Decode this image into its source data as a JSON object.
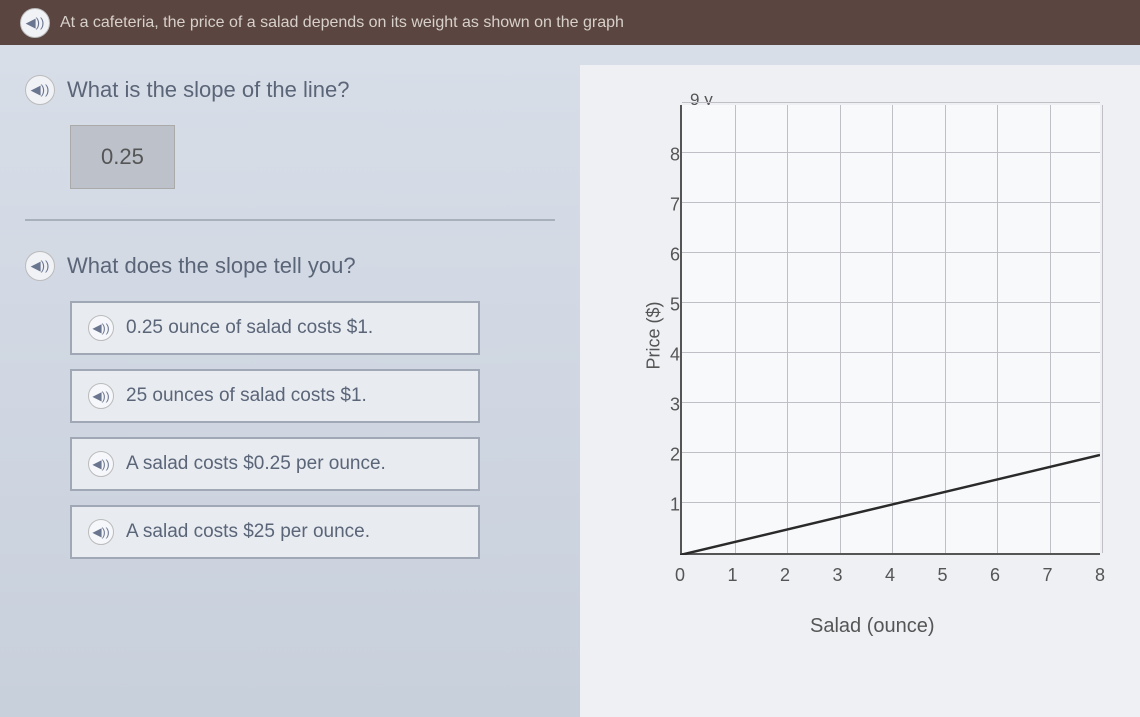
{
  "header": {
    "text": "At a cafeteria, the price of a salad depends on its weight as shown on the graph"
  },
  "question1": {
    "text": "What is the slope of the line?",
    "answer": "0.25"
  },
  "question2": {
    "text": "What does the slope tell you?",
    "options": [
      "0.25 ounce of salad costs $1.",
      "25 ounces of salad costs $1.",
      "A salad costs $0.25 per ounce.",
      "A salad costs $25 per ounce."
    ]
  },
  "chart": {
    "type": "line",
    "y_top_label": "y",
    "y_max_label": "9",
    "xlabel": "Salad (ounce)",
    "ylabel": "Price ($)",
    "xlim": [
      0,
      8
    ],
    "ylim": [
      0,
      9
    ],
    "xticks": [
      "0",
      "1",
      "2",
      "3",
      "4",
      "5",
      "6",
      "7",
      "8"
    ],
    "yticks": [
      "1",
      "2",
      "3",
      "4",
      "5",
      "6",
      "7",
      "8"
    ],
    "grid_color": "#c0bfc5",
    "axis_color": "#555555",
    "line_color": "#2a2a2a",
    "line_width": 2.5,
    "background_color": "#f8f9fb",
    "slope": 0.25,
    "data_points": [
      [
        0,
        0
      ],
      [
        8,
        2
      ]
    ]
  }
}
